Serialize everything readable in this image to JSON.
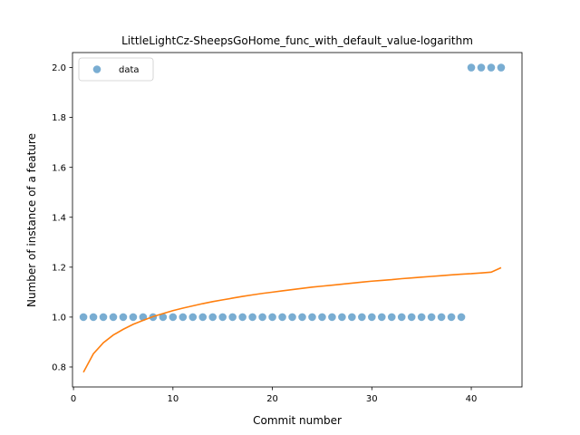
{
  "chart_data": {
    "type": "scatter",
    "title": "LittleLightCz-SheepsGoHome_func_with_default_value-logarithm",
    "xlabel": "Commit number",
    "ylabel": "Number of instance of a feature",
    "xlim": [
      -0.1,
      45.1
    ],
    "ylim": [
      0.72,
      2.06
    ],
    "x_ticks": [
      0,
      10,
      20,
      30,
      40
    ],
    "x_tick_labels": [
      "0",
      "10",
      "20",
      "30",
      "40"
    ],
    "y_ticks": [
      0.8,
      1.0,
      1.2,
      1.4,
      1.6,
      1.8,
      2.0
    ],
    "y_tick_labels": [
      "0.8",
      "1.0",
      "1.2",
      "1.4",
      "1.6",
      "1.8",
      "2.0"
    ],
    "legend": {
      "position": "top-left",
      "entries": [
        "data"
      ]
    },
    "grid": false,
    "series": [
      {
        "name": "data",
        "kind": "scatter",
        "color": "#1f77b4",
        "x": [
          1,
          2,
          3,
          4,
          5,
          6,
          7,
          8,
          9,
          10,
          11,
          12,
          13,
          14,
          15,
          16,
          17,
          18,
          19,
          20,
          21,
          22,
          23,
          24,
          25,
          26,
          27,
          28,
          29,
          30,
          31,
          32,
          33,
          34,
          35,
          36,
          37,
          38,
          39,
          40,
          41,
          42,
          43
        ],
        "y": [
          1,
          1,
          1,
          1,
          1,
          1,
          1,
          1,
          1,
          1,
          1,
          1,
          1,
          1,
          1,
          1,
          1,
          1,
          1,
          1,
          1,
          1,
          1,
          1,
          1,
          1,
          1,
          1,
          1,
          1,
          1,
          1,
          1,
          1,
          1,
          1,
          1,
          1,
          1,
          2,
          2,
          2,
          2
        ]
      },
      {
        "kind": "line",
        "color": "#ff7f0e",
        "x": [
          1,
          2,
          3,
          4,
          5,
          6,
          7,
          8,
          9,
          10,
          11,
          12,
          13,
          14,
          15,
          16,
          17,
          18,
          19,
          20,
          21,
          22,
          23,
          24,
          25,
          26,
          27,
          28,
          29,
          30,
          31,
          32,
          33,
          34,
          35,
          36,
          37,
          38,
          39,
          40,
          41,
          42,
          43
        ],
        "y": [
          0.779,
          0.853,
          0.897,
          0.928,
          0.951,
          0.971,
          0.987,
          1.002,
          1.014,
          1.026,
          1.036,
          1.045,
          1.054,
          1.062,
          1.069,
          1.076,
          1.083,
          1.089,
          1.095,
          1.1,
          1.105,
          1.11,
          1.115,
          1.12,
          1.124,
          1.128,
          1.132,
          1.136,
          1.14,
          1.144,
          1.147,
          1.15,
          1.154,
          1.157,
          1.16,
          1.163,
          1.166,
          1.169,
          1.172,
          1.174,
          1.177,
          1.18,
          1.198
        ]
      }
    ]
  }
}
